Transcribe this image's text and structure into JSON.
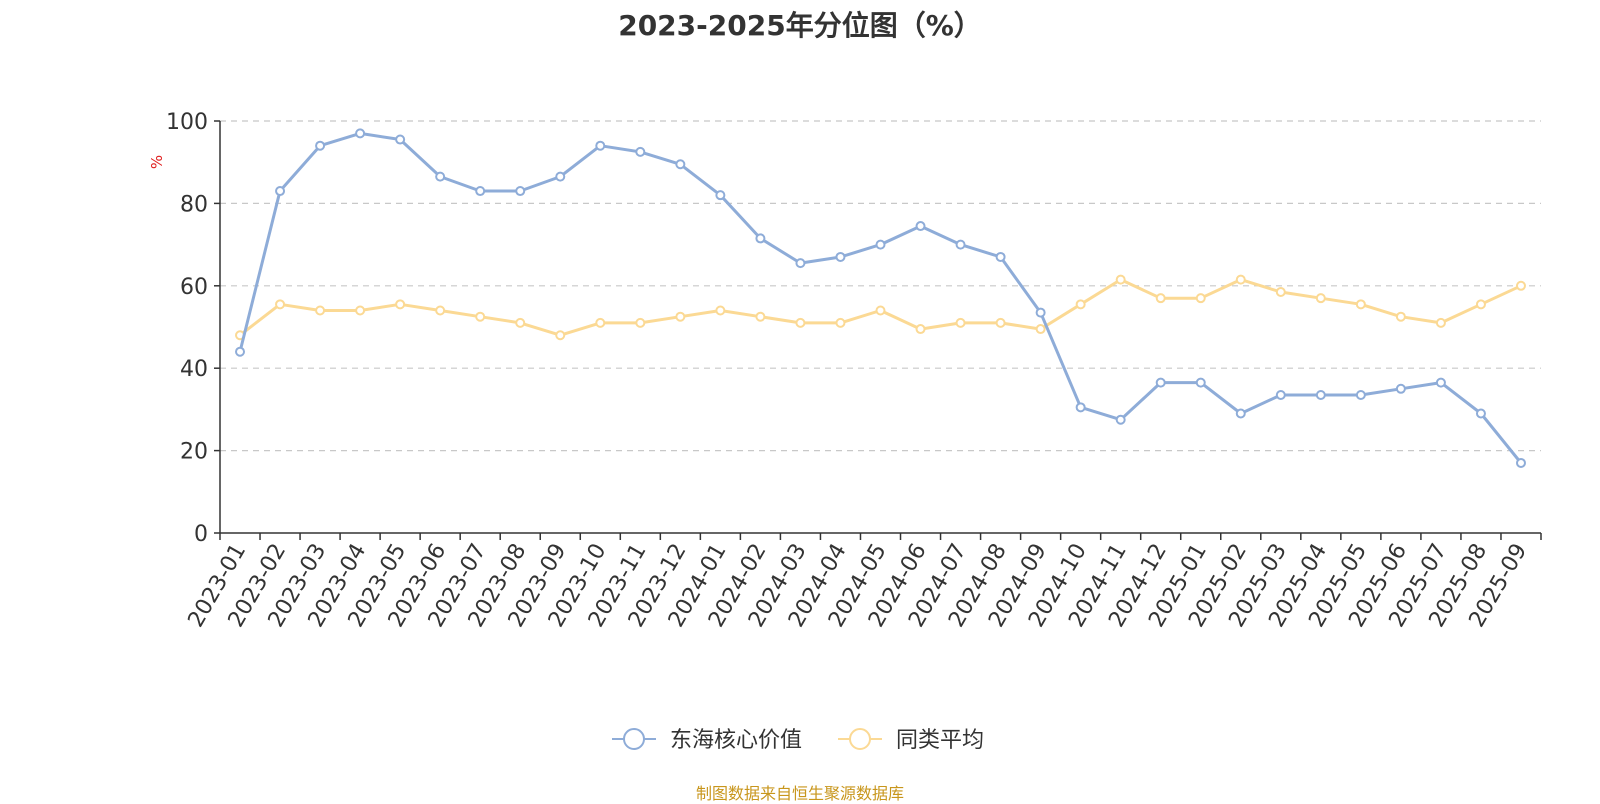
{
  "chart_data": {
    "type": "line",
    "title": "2023-2025年分位图（%）",
    "ylabel": "%",
    "xlabel": "",
    "ylim": [
      0,
      100
    ],
    "yticks": [
      0,
      20,
      40,
      60,
      80,
      100
    ],
    "grid": true,
    "legend_position": "bottom-center",
    "categories": [
      "2023-01",
      "2023-02",
      "2023-03",
      "2023-04",
      "2023-05",
      "2023-06",
      "2023-07",
      "2023-08",
      "2023-09",
      "2023-10",
      "2023-11",
      "2023-12",
      "2024-01",
      "2024-02",
      "2024-03",
      "2024-04",
      "2024-05",
      "2024-06",
      "2024-07",
      "2024-08",
      "2024-09",
      "2024-10",
      "2024-11",
      "2024-12",
      "2025-01",
      "2025-02",
      "2025-03",
      "2025-04",
      "2025-05",
      "2025-06",
      "2025-07",
      "2025-08",
      "2025-09"
    ],
    "series": [
      {
        "name": "东海核心价值",
        "color": "#8eacd8",
        "values": [
          44,
          83,
          94,
          97,
          95.5,
          86.5,
          83,
          83,
          86.5,
          94,
          92.5,
          89.5,
          82,
          71.5,
          65.5,
          67,
          70,
          74.5,
          70,
          67,
          53.5,
          30.5,
          27.5,
          36.5,
          36.5,
          29,
          33.5,
          33.5,
          33.5,
          35,
          36.5,
          29,
          17
        ]
      },
      {
        "name": "同类平均",
        "color": "#fbd994",
        "values": [
          48,
          55.5,
          54,
          54,
          55.5,
          54,
          52.5,
          51,
          48,
          51,
          51,
          52.5,
          54,
          52.5,
          51,
          51,
          54,
          49.5,
          51,
          51,
          49.5,
          55.5,
          61.5,
          57,
          57,
          61.5,
          58.5,
          57,
          55.5,
          52.5,
          51,
          55.5,
          60
        ]
      }
    ]
  },
  "footer": {
    "source": "制图数据来自恒生聚源数据库"
  }
}
